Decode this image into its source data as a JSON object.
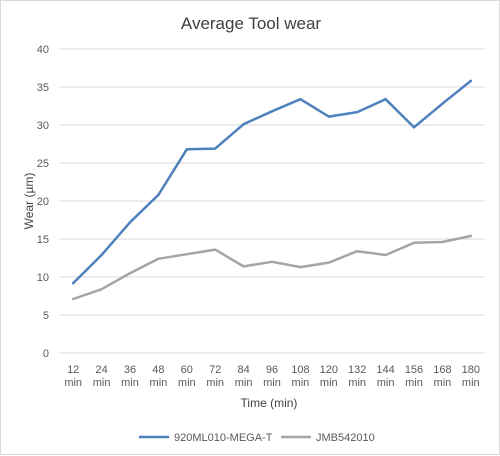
{
  "chart_data": {
    "type": "line",
    "title": "Average Tool wear",
    "xlabel": "Time (min)",
    "ylabel": "Wear (µm)",
    "categories": [
      [
        "12",
        "min"
      ],
      [
        "24",
        "min"
      ],
      [
        "36",
        "min"
      ],
      [
        "48",
        "min"
      ],
      [
        "60",
        "min"
      ],
      [
        "72",
        "min"
      ],
      [
        "84",
        "min"
      ],
      [
        "96",
        "min"
      ],
      [
        "108",
        "min"
      ],
      [
        "120",
        "min"
      ],
      [
        "132",
        "min"
      ],
      [
        "144",
        "min"
      ],
      [
        "156",
        "min"
      ],
      [
        "168",
        "min"
      ],
      [
        "180",
        "min"
      ]
    ],
    "ylim": [
      0,
      40
    ],
    "yticks": [
      0,
      5,
      10,
      15,
      20,
      25,
      30,
      35,
      40
    ],
    "grid": true,
    "legend_position": "bottom",
    "series": [
      {
        "name": "920ML010-MEGA-T",
        "color": "#4f81bd",
        "values": [
          9.2,
          12.9,
          17.2,
          20.8,
          26.8,
          26.9,
          30.1,
          31.8,
          33.4,
          31.1,
          31.7,
          33.4,
          29.7,
          32.8,
          35.8
        ]
      },
      {
        "name": "JMB542010",
        "color": "#a5a5a5",
        "values": [
          7.1,
          8.4,
          10.5,
          12.4,
          13.0,
          13.6,
          11.4,
          12.0,
          11.3,
          11.9,
          13.4,
          12.9,
          14.5,
          14.6,
          15.4
        ]
      }
    ],
    "gridline_color": "#d9d9d9"
  }
}
